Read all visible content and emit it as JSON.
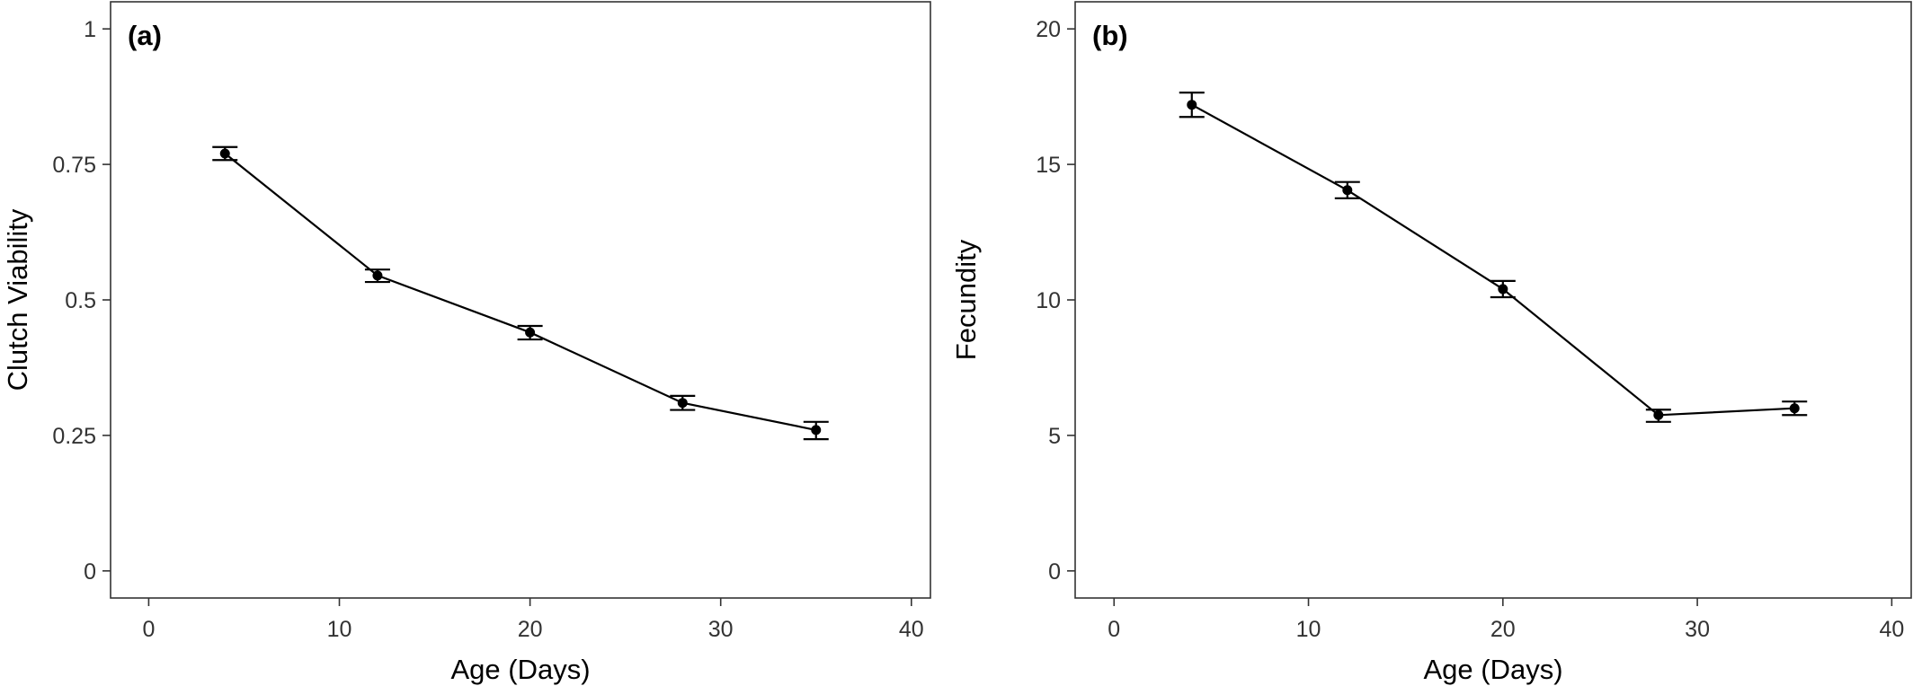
{
  "chart_data": [
    {
      "type": "line",
      "panel_label": "(a)",
      "xlabel": "Age (Days)",
      "ylabel": "Clutch Viability",
      "xlim": [
        -2,
        41
      ],
      "ylim": [
        -0.05,
        1.05
      ],
      "x_ticks": [
        0,
        10,
        20,
        30,
        40
      ],
      "x_tick_labels": [
        "0",
        "10",
        "20",
        "30",
        "40"
      ],
      "y_ticks": [
        0,
        0.25,
        0.5,
        0.75,
        1
      ],
      "y_tick_labels": [
        "0",
        "0.25",
        "0.5",
        "0.75",
        "1"
      ],
      "grid": false,
      "legend": "none",
      "series": [
        {
          "x": [
            4,
            12,
            20,
            28,
            35
          ],
          "y": [
            0.77,
            0.545,
            0.44,
            0.31,
            0.26
          ],
          "err_low": [
            0.758,
            0.533,
            0.427,
            0.297,
            0.243
          ],
          "err_high": [
            0.782,
            0.556,
            0.452,
            0.323,
            0.275
          ],
          "color": "#000000"
        }
      ]
    },
    {
      "type": "line",
      "panel_label": "(b)",
      "xlabel": "Age (Days)",
      "ylabel": "Fecundity",
      "xlim": [
        -2,
        41
      ],
      "ylim": [
        -1,
        21
      ],
      "x_ticks": [
        0,
        10,
        20,
        30,
        40
      ],
      "x_tick_labels": [
        "0",
        "10",
        "20",
        "30",
        "40"
      ],
      "y_ticks": [
        0,
        5,
        10,
        15,
        20
      ],
      "y_tick_labels": [
        "0",
        "5",
        "10",
        "15",
        "20"
      ],
      "grid": false,
      "legend": "none",
      "series": [
        {
          "x": [
            4,
            12,
            20,
            28,
            35
          ],
          "y": [
            17.2,
            14.05,
            10.4,
            5.75,
            6.0
          ],
          "err_low": [
            16.75,
            13.75,
            10.1,
            5.5,
            5.75
          ],
          "err_high": [
            17.65,
            14.35,
            10.7,
            5.95,
            6.25
          ],
          "color": "#000000"
        }
      ]
    }
  ]
}
